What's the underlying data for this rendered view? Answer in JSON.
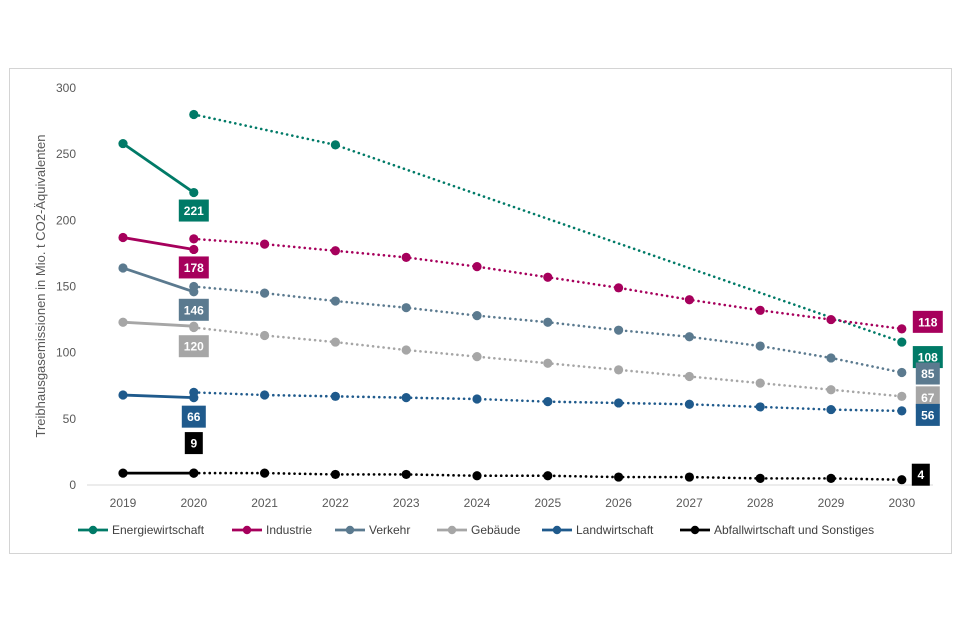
{
  "chart_data": {
    "type": "line",
    "title": "",
    "ylabel": "Treibhausgasemissionen in Mio. t CO2-Äquivalenten",
    "xlabel": "",
    "ylim": [
      0,
      300
    ],
    "yticks": [
      "0",
      "50",
      "100",
      "150",
      "200",
      "250",
      "300"
    ],
    "xticks": [
      "2019",
      "2020",
      "2021",
      "2022",
      "2023",
      "2024",
      "2025",
      "2026",
      "2027",
      "2028",
      "2029",
      "2030"
    ],
    "grid": false,
    "legend": "bottom",
    "series": [
      {
        "name": "Energiewirtschaft",
        "color": "#007a67",
        "actual": [
          [
            2019,
            258
          ],
          [
            2020,
            221
          ]
        ],
        "target": [
          [
            2020,
            280
          ],
          [
            2022,
            257
          ],
          [
            2030,
            108
          ]
        ],
        "target_points_only": [
          2020,
          2022,
          2030
        ],
        "labels": [
          {
            "year": 2020,
            "text": "221"
          },
          {
            "year": 2030,
            "text": "108"
          }
        ]
      },
      {
        "name": "Industrie",
        "color": "#a6005c",
        "actual": [
          [
            2019,
            187
          ],
          [
            2020,
            178
          ]
        ],
        "target": [
          [
            2020,
            186
          ],
          [
            2021,
            182
          ],
          [
            2022,
            177
          ],
          [
            2023,
            172
          ],
          [
            2024,
            165
          ],
          [
            2025,
            157
          ],
          [
            2026,
            149
          ],
          [
            2027,
            140
          ],
          [
            2028,
            132
          ],
          [
            2029,
            125
          ],
          [
            2030,
            118
          ]
        ],
        "labels": [
          {
            "year": 2020,
            "text": "178"
          },
          {
            "year": 2030,
            "text": "118"
          }
        ]
      },
      {
        "name": "Verkehr",
        "color": "#5b7a8f",
        "actual": [
          [
            2019,
            164
          ],
          [
            2020,
            146
          ]
        ],
        "target": [
          [
            2020,
            150
          ],
          [
            2021,
            145
          ],
          [
            2022,
            139
          ],
          [
            2023,
            134
          ],
          [
            2024,
            128
          ],
          [
            2025,
            123
          ],
          [
            2026,
            117
          ],
          [
            2027,
            112
          ],
          [
            2028,
            105
          ],
          [
            2029,
            96
          ],
          [
            2030,
            85
          ]
        ],
        "labels": [
          {
            "year": 2020,
            "text": "146"
          },
          {
            "year": 2030,
            "text": "85"
          }
        ]
      },
      {
        "name": "Gebäude",
        "color": "#a6a6a6",
        "actual": [
          [
            2019,
            123
          ],
          [
            2020,
            120
          ]
        ],
        "target": [
          [
            2020,
            119
          ],
          [
            2021,
            113
          ],
          [
            2022,
            108
          ],
          [
            2023,
            102
          ],
          [
            2024,
            97
          ],
          [
            2025,
            92
          ],
          [
            2026,
            87
          ],
          [
            2027,
            82
          ],
          [
            2028,
            77
          ],
          [
            2029,
            72
          ],
          [
            2030,
            67
          ]
        ],
        "labels": [
          {
            "year": 2020,
            "text": "120"
          },
          {
            "year": 2030,
            "text": "67"
          }
        ]
      },
      {
        "name": "Landwirtschaft",
        "color": "#1f5a8c",
        "actual": [
          [
            2019,
            68
          ],
          [
            2020,
            66
          ]
        ],
        "target": [
          [
            2020,
            70
          ],
          [
            2021,
            68
          ],
          [
            2022,
            67
          ],
          [
            2023,
            66
          ],
          [
            2024,
            65
          ],
          [
            2025,
            63
          ],
          [
            2026,
            62
          ],
          [
            2027,
            61
          ],
          [
            2028,
            59
          ],
          [
            2029,
            57
          ],
          [
            2030,
            56
          ]
        ],
        "labels": [
          {
            "year": 2020,
            "text": "66"
          },
          {
            "year": 2030,
            "text": "56"
          }
        ]
      },
      {
        "name": "Abfallwirtschaft und Sonstiges",
        "color": "#000000",
        "actual": [
          [
            2019,
            9
          ],
          [
            2020,
            9
          ]
        ],
        "target": [
          [
            2020,
            9
          ],
          [
            2021,
            9
          ],
          [
            2022,
            8
          ],
          [
            2023,
            8
          ],
          [
            2024,
            7
          ],
          [
            2025,
            7
          ],
          [
            2026,
            6
          ],
          [
            2027,
            6
          ],
          [
            2028,
            5
          ],
          [
            2029,
            5
          ],
          [
            2030,
            4
          ]
        ],
        "labels": [
          {
            "year": 2020,
            "text": "9"
          },
          {
            "year": 2030,
            "text": "4"
          }
        ]
      }
    ]
  }
}
